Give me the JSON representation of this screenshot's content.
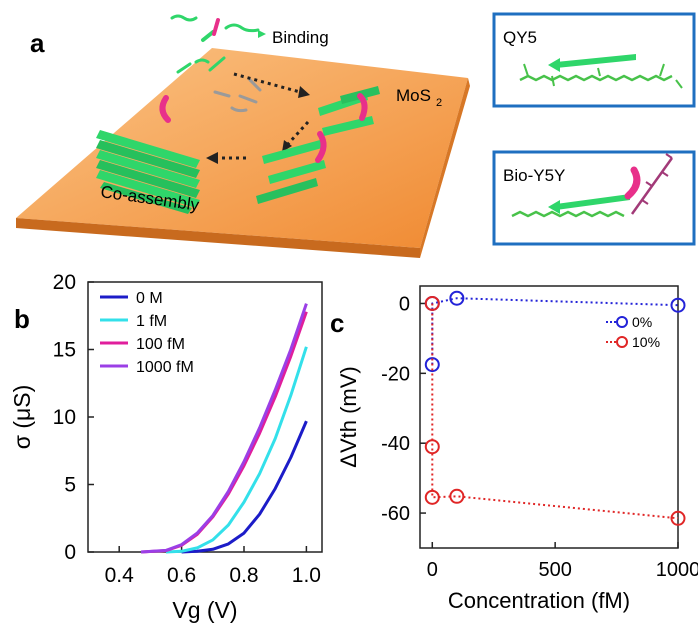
{
  "panel_a": {
    "letter": "a",
    "labels": {
      "binding": "Binding",
      "mos2": "MoS",
      "mos2_sub": "2",
      "coassembly": "Co-assembly"
    },
    "insets": [
      {
        "title": "QY5",
        "border_color": "#1f6fc0"
      },
      {
        "title": "Bio-Y5Y",
        "border_color": "#1f6fc0"
      }
    ],
    "colors": {
      "substrate": "#f6a04c",
      "peptide": "#2fd66a",
      "biotin": "#e8308a"
    }
  },
  "chart_data": [
    {
      "type": "line",
      "panel": "b",
      "xlabel": "Vg (V)",
      "ylabel": "σ (μS)",
      "xlim": [
        0.3,
        1.05
      ],
      "ylim": [
        0,
        20
      ],
      "xticks": [
        "0.4",
        "0.6",
        "0.8",
        "1.0"
      ],
      "yticks": [
        "0",
        "5",
        "10",
        "15",
        "20"
      ],
      "legend_position": "top-left",
      "series": [
        {
          "name": "0 M",
          "color": "#1c1cc8",
          "x": [
            0.6,
            0.65,
            0.7,
            0.75,
            0.8,
            0.85,
            0.9,
            0.95,
            1.0
          ],
          "y": [
            0.0,
            0.05,
            0.2,
            0.6,
            1.4,
            2.8,
            4.7,
            7.0,
            9.7
          ]
        },
        {
          "name": "1 fM",
          "color": "#33e0ea",
          "x": [
            0.55,
            0.6,
            0.65,
            0.7,
            0.75,
            0.8,
            0.85,
            0.9,
            0.95,
            1.0
          ],
          "y": [
            0.0,
            0.05,
            0.3,
            0.9,
            2.0,
            3.7,
            5.8,
            8.4,
            11.6,
            15.2
          ]
        },
        {
          "name": "100 fM",
          "color": "#e01e9c",
          "x": [
            0.47,
            0.55,
            0.6,
            0.65,
            0.7,
            0.75,
            0.8,
            0.85,
            0.9,
            0.95,
            1.0
          ],
          "y": [
            0.0,
            0.1,
            0.5,
            1.3,
            2.6,
            4.3,
            6.4,
            8.8,
            11.5,
            14.5,
            17.8
          ]
        },
        {
          "name": "1000 fM",
          "color": "#9b3fe6",
          "x": [
            0.47,
            0.55,
            0.6,
            0.65,
            0.7,
            0.75,
            0.8,
            0.85,
            0.9,
            0.95,
            1.0
          ],
          "y": [
            0.0,
            0.12,
            0.55,
            1.4,
            2.7,
            4.5,
            6.7,
            9.2,
            12.0,
            15.0,
            18.4
          ]
        }
      ]
    },
    {
      "type": "scatter",
      "panel": "c",
      "xlabel": "Concentration (fM)",
      "ylabel": "ΔVth (mV)",
      "xlim": [
        -50,
        1000
      ],
      "ylim": [
        -70,
        5
      ],
      "xticks": [
        "0",
        "500",
        "1000"
      ],
      "yticks": [
        "0",
        "-20",
        "-40",
        "-60"
      ],
      "legend_position": "top-right",
      "series": [
        {
          "name": "0%",
          "color": "#2323d8",
          "x": [
            0,
            0,
            100,
            1000
          ],
          "y": [
            -17.5,
            0,
            1.5,
            -0.5
          ]
        },
        {
          "name": "10%",
          "color": "#e02626",
          "x": [
            0,
            0,
            0,
            100,
            1000
          ],
          "y": [
            0,
            -41,
            -55.5,
            -55.2,
            -61.5
          ]
        }
      ]
    }
  ]
}
